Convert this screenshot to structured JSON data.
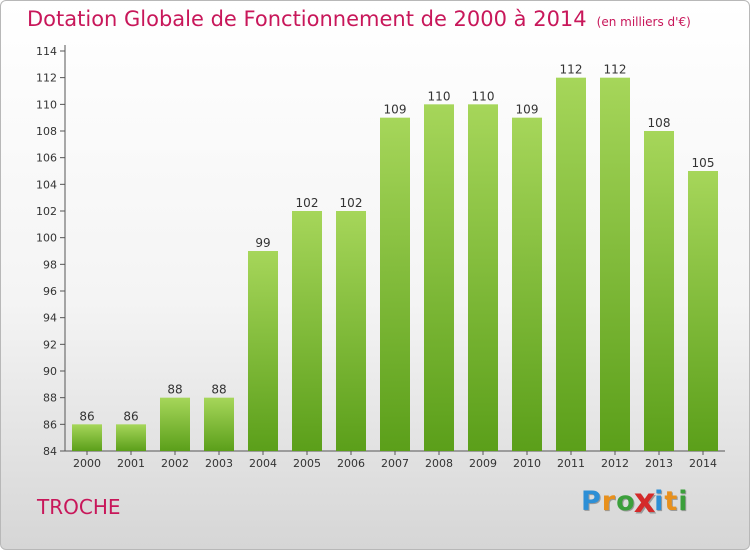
{
  "header": {
    "title": "Dotation Globale de Fonctionnement de 2000 à 2014",
    "unit": "(en milliers d'€)"
  },
  "footer": {
    "commune": "TROCHE",
    "logo": {
      "letters": [
        "P",
        "r",
        "o",
        "x",
        "i",
        "t",
        "i"
      ],
      "colors": [
        "#2d8fd6",
        "#e8901c",
        "#3b9f3b",
        "#d42a2a",
        "#2d8fd6",
        "#e8901c",
        "#3b9f3b"
      ]
    }
  },
  "chart_data": {
    "type": "bar",
    "title": "Dotation Globale de Fonctionnement de 2000 à 2014",
    "subtitle": "(en milliers d'€)",
    "xlabel": "",
    "ylabel": "",
    "categories": [
      "2000",
      "2001",
      "2002",
      "2003",
      "2004",
      "2005",
      "2006",
      "2007",
      "2008",
      "2009",
      "2010",
      "2011",
      "2012",
      "2013",
      "2014"
    ],
    "values": [
      86,
      86,
      88,
      88,
      99,
      102,
      102,
      109,
      110,
      110,
      109,
      112,
      112,
      108,
      105
    ],
    "ylim": [
      84,
      114
    ],
    "yticks": [
      84,
      86,
      88,
      90,
      92,
      94,
      96,
      98,
      100,
      102,
      104,
      106,
      108,
      110,
      112,
      114
    ],
    "grid": false,
    "colors": {
      "bar_top": "#a6d65a",
      "bar_bottom": "#5b9f1a",
      "axis": "#555555",
      "text": "#333333"
    }
  }
}
